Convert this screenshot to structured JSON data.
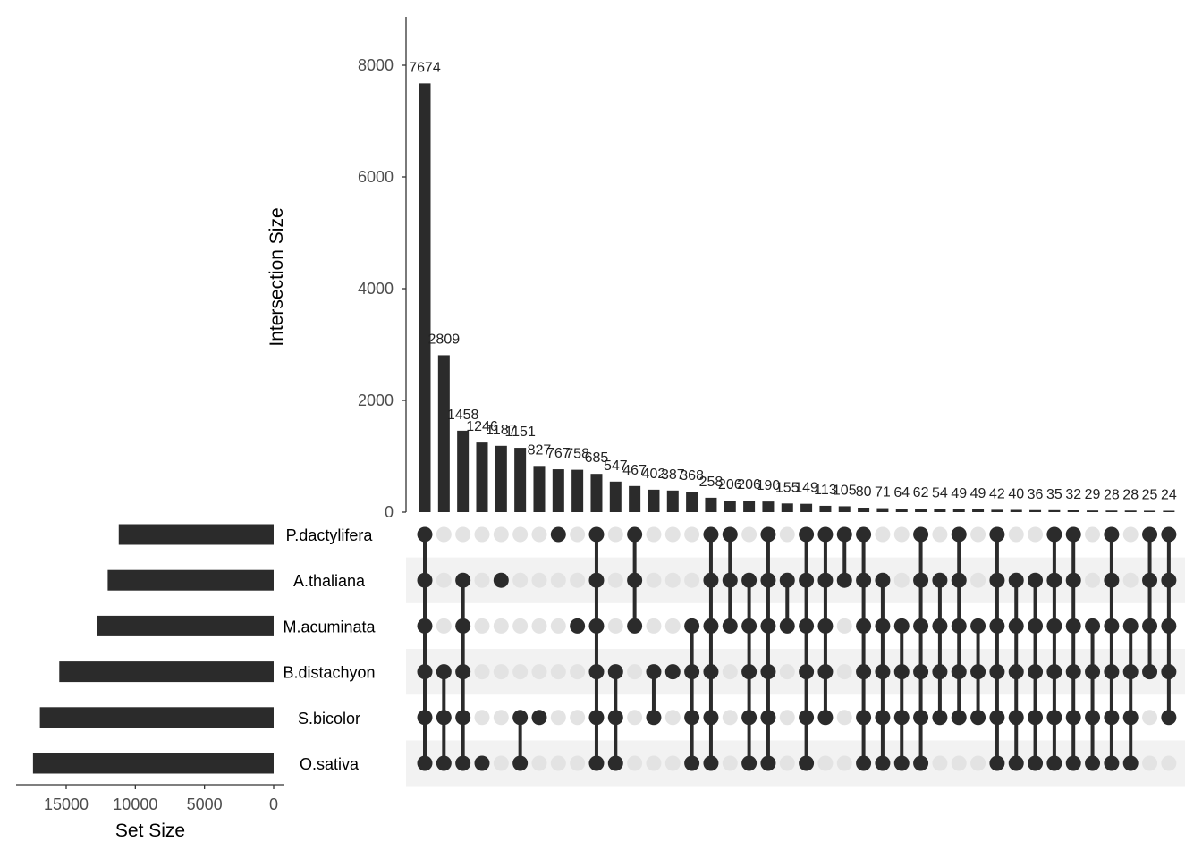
{
  "chart_data": {
    "type": "upset",
    "intersection_axis_label": "Intersection Size",
    "set_size_axis_label": "Set Size",
    "y_ticks": [
      0,
      2000,
      4000,
      6000,
      8000
    ],
    "ylim": [
      0,
      8800
    ],
    "set_size_ticks": [
      15000,
      10000,
      5000,
      0
    ],
    "set_size_xlim": [
      18500,
      0
    ],
    "sets": [
      {
        "name": "P.dactylifera",
        "size": 11200
      },
      {
        "name": "A.thaliana",
        "size": 12000
      },
      {
        "name": "M.acuminata",
        "size": 12800
      },
      {
        "name": "B.distachyon",
        "size": 15500
      },
      {
        "name": "S.bicolor",
        "size": 16900
      },
      {
        "name": "O.sativa",
        "size": 17400
      }
    ],
    "intersections": [
      {
        "value": 7674,
        "label": "7674",
        "members": [
          0,
          1,
          2,
          3,
          4,
          5
        ]
      },
      {
        "value": 2809,
        "label": "2809",
        "members": [
          3,
          4,
          5
        ]
      },
      {
        "value": 1458,
        "label": "1458",
        "members": [
          1,
          2,
          3,
          4,
          5
        ]
      },
      {
        "value": 1246,
        "label": "1246",
        "members": [
          5
        ]
      },
      {
        "value": 1187,
        "label": "1187",
        "members": [
          1
        ]
      },
      {
        "value": 1151,
        "label": "1151",
        "members": [
          4,
          5
        ]
      },
      {
        "value": 827,
        "label": "827",
        "members": [
          4
        ]
      },
      {
        "value": 767,
        "label": "767",
        "members": [
          0
        ]
      },
      {
        "value": 758,
        "label": "758",
        "members": [
          2
        ]
      },
      {
        "value": 685,
        "label": "685",
        "members": [
          0,
          1,
          2,
          3,
          4,
          5
        ]
      },
      {
        "value": 547,
        "label": "547",
        "members": [
          3,
          4,
          5
        ]
      },
      {
        "value": 467,
        "label": "467",
        "members": [
          0,
          1,
          2
        ]
      },
      {
        "value": 402,
        "label": "402",
        "members": [
          3,
          4
        ]
      },
      {
        "value": 387,
        "label": "387",
        "members": [
          3
        ]
      },
      {
        "value": 368,
        "label": "368",
        "members": [
          2,
          3,
          4,
          5
        ]
      },
      {
        "value": 258,
        "label": "258",
        "members": [
          0,
          1,
          2,
          3,
          4,
          5
        ]
      },
      {
        "value": 206,
        "label": "206",
        "members": [
          0,
          1,
          2
        ]
      },
      {
        "value": 206,
        "label": "206",
        "members": [
          1,
          2,
          3,
          4,
          5
        ]
      },
      {
        "value": 190,
        "label": "190",
        "members": [
          0,
          1,
          2,
          3,
          4,
          5
        ]
      },
      {
        "value": 155,
        "label": "155",
        "members": [
          1,
          2
        ]
      },
      {
        "value": 149,
        "label": "149",
        "members": [
          0,
          1,
          2,
          3,
          4,
          5
        ]
      },
      {
        "value": 113,
        "label": "113",
        "members": [
          0,
          1,
          2,
          3,
          4
        ]
      },
      {
        "value": 105,
        "label": "105",
        "members": [
          0,
          1
        ]
      },
      {
        "value": 80,
        "label": "80",
        "members": [
          0,
          1,
          2,
          3,
          4,
          5
        ]
      },
      {
        "value": 71,
        "label": "71",
        "members": [
          1,
          2,
          3,
          4,
          5
        ]
      },
      {
        "value": 64,
        "label": "64",
        "members": [
          2,
          3,
          4,
          5
        ]
      },
      {
        "value": 62,
        "label": "62",
        "members": [
          0,
          1,
          2,
          3,
          4,
          5
        ]
      },
      {
        "value": 54,
        "label": "54",
        "members": [
          1,
          2,
          3,
          4
        ]
      },
      {
        "value": 49,
        "label": "49",
        "members": [
          0,
          1,
          2,
          3,
          4
        ]
      },
      {
        "value": 49,
        "label": "49",
        "members": [
          2,
          3,
          4
        ]
      },
      {
        "value": 42,
        "label": "42",
        "members": [
          0,
          1,
          2,
          3,
          4,
          5
        ]
      },
      {
        "value": 40,
        "label": "40",
        "members": [
          1,
          2,
          3,
          4,
          5
        ]
      },
      {
        "value": 36,
        "label": "36",
        "members": [
          1,
          2,
          3,
          4,
          5
        ]
      },
      {
        "value": 35,
        "label": "35",
        "members": [
          0,
          1,
          2,
          3,
          4,
          5
        ]
      },
      {
        "value": 32,
        "label": "32",
        "members": [
          0,
          1,
          2,
          3,
          4,
          5
        ]
      },
      {
        "value": 29,
        "label": "29",
        "members": [
          2,
          3,
          4,
          5
        ]
      },
      {
        "value": 28,
        "label": "28",
        "members": [
          0,
          1,
          2,
          3,
          4,
          5
        ]
      },
      {
        "value": 28,
        "label": "28",
        "members": [
          2,
          3,
          4,
          5
        ]
      },
      {
        "value": 25,
        "label": "25",
        "members": [
          0,
          1,
          2,
          3
        ]
      },
      {
        "value": 24,
        "label": "24",
        "members": [
          0,
          1,
          2,
          3,
          4
        ]
      }
    ]
  },
  "colors": {
    "bar": "#2b2b2b",
    "dot_active": "#2b2b2b",
    "dot_inactive": "#e3e3e3",
    "stripe": "#f2f2f2",
    "axis": "#333333",
    "tick_text": "#4d4d4d"
  }
}
